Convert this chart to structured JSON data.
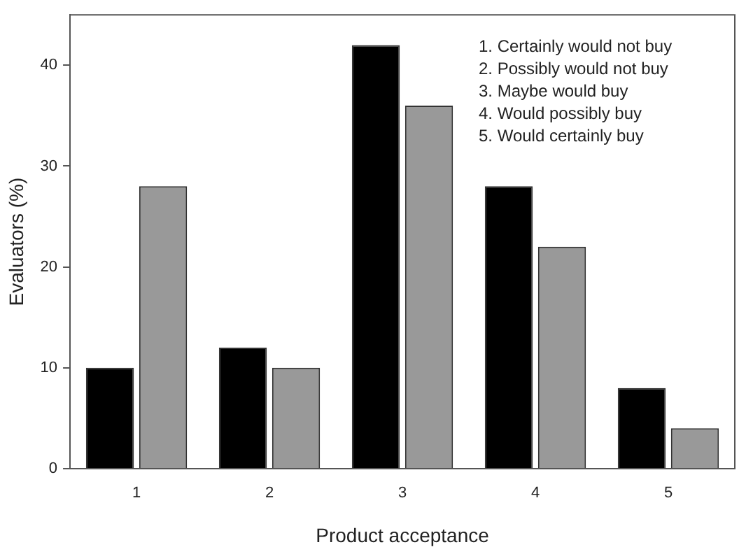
{
  "chart_data": {
    "type": "bar",
    "xlabel": "Product acceptance",
    "ylabel": "Evaluators (%)",
    "categories": [
      "1",
      "2",
      "3",
      "4",
      "5"
    ],
    "series": [
      {
        "color": "#000000",
        "values": [
          10,
          12,
          42,
          28,
          8
        ]
      },
      {
        "color": "#999999",
        "values": [
          28,
          10,
          36,
          22,
          4
        ]
      }
    ],
    "ylim": [
      0,
      45
    ],
    "yticks": [
      0,
      10,
      20,
      30,
      40
    ],
    "grid": false,
    "legend": false,
    "annotations": [
      "1. Certainly would not buy",
      "2. Possibly would not buy",
      "3. Maybe would buy",
      "4. Would possibly buy",
      "5. Would certainly buy"
    ]
  }
}
